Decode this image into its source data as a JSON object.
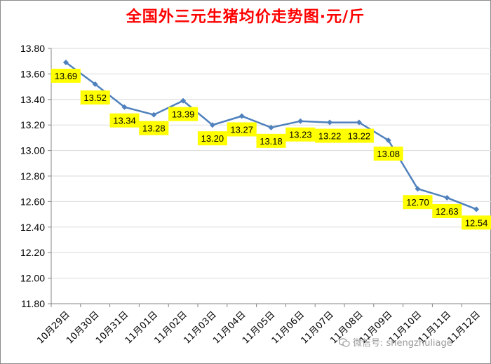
{
  "chart_data": {
    "type": "line",
    "title": "全国外三元生猪均价走势图·元/斤",
    "xlabel": "",
    "ylabel": "",
    "ylim": [
      11.8,
      13.8
    ],
    "ytick_step": 0.2,
    "grid": "y",
    "legend": "none",
    "categories": [
      "10月29日",
      "10月30日",
      "10月31日",
      "11月01日",
      "11月02日",
      "11月03日",
      "11月04日",
      "11月05日",
      "11月06日",
      "11月07日",
      "11月08日",
      "11月09日",
      "11月10日",
      "11月11日",
      "11月12日"
    ],
    "series": [
      {
        "values": [
          13.69,
          13.52,
          13.34,
          13.28,
          13.39,
          13.2,
          13.27,
          13.18,
          13.23,
          13.22,
          13.22,
          13.08,
          12.7,
          12.63,
          12.54
        ],
        "labels": [
          "13.69",
          "13.52",
          "13.34",
          "13.28",
          "13.39",
          "13.20",
          "13.27",
          "13.18",
          "13.23",
          "13.22",
          "13.22",
          "13.08",
          "12.70",
          "12.63",
          "12.54"
        ]
      }
    ],
    "colors": {
      "title": "#ff0000",
      "line": "#4f81bd",
      "label_bg": "#ffff00",
      "grid": "#d9d9d9",
      "axis": "#868686"
    }
  },
  "watermark": {
    "icon": "wechat-icon",
    "text": "微信号: shengzhuliage"
  }
}
